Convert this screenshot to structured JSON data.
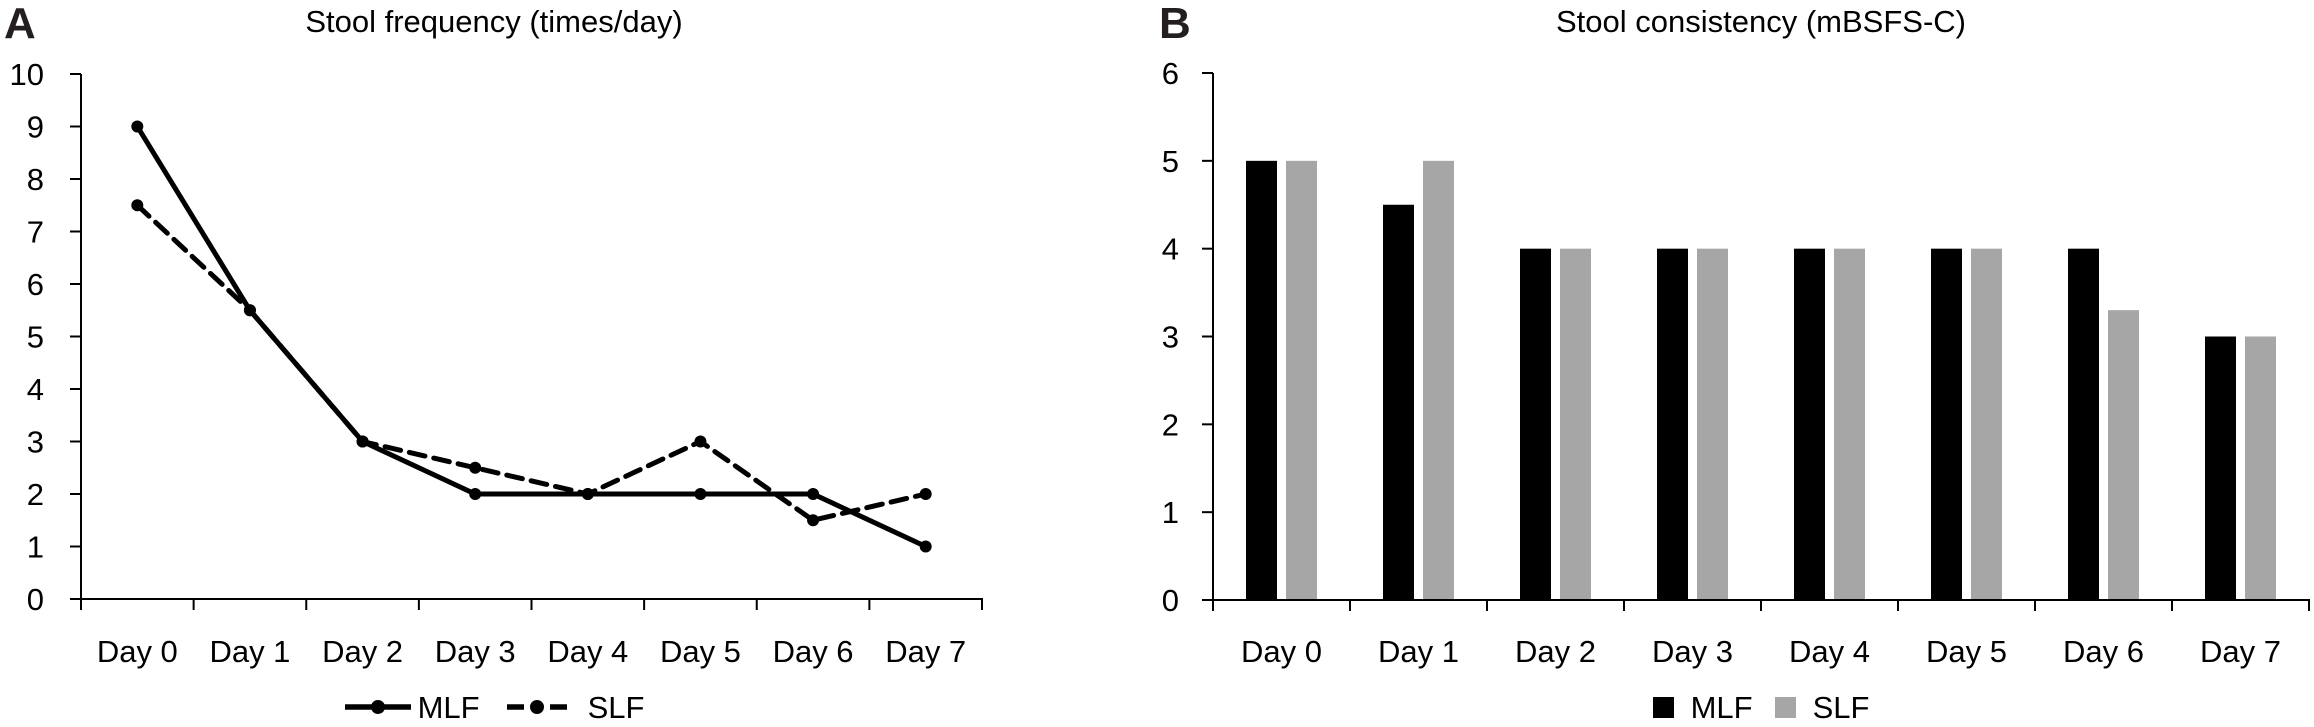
{
  "figure": {
    "panels": [
      {
        "label": "A",
        "title": "Stool frequency (times/day)",
        "legend": [
          {
            "label": "MLF"
          },
          {
            "label": "SLF"
          }
        ]
      },
      {
        "label": "B",
        "title": "Stool consistency (mBSFS-C)",
        "legend": [
          {
            "label": "MLF"
          },
          {
            "label": "SLF"
          }
        ]
      }
    ],
    "colors": {
      "series_black": "#000000",
      "series_gray": "#a6a6a6",
      "axis": "#000000",
      "panel_letter": "#231f20"
    }
  },
  "chart_data": [
    {
      "type": "line",
      "panel": "A",
      "title": "Stool frequency (times/day)",
      "categories": [
        "Day 0",
        "Day 1",
        "Day 2",
        "Day 3",
        "Day 4",
        "Day 5",
        "Day 6",
        "Day 7"
      ],
      "series": [
        {
          "name": "MLF",
          "line_style": "solid",
          "marker": "circle",
          "color": "#000000",
          "values": [
            9,
            5.5,
            3,
            2,
            2,
            2,
            2,
            1
          ]
        },
        {
          "name": "SLF",
          "line_style": "dashed",
          "marker": "circle",
          "color": "#000000",
          "values": [
            7.5,
            5.5,
            3,
            2.5,
            2,
            3,
            1.5,
            2
          ]
        }
      ],
      "ylim": [
        0,
        10
      ],
      "yticks": [
        0,
        1,
        2,
        3,
        4,
        5,
        6,
        7,
        8,
        9,
        10
      ],
      "grid": false,
      "legend_position": "bottom"
    },
    {
      "type": "bar",
      "panel": "B",
      "title": "Stool consistency (mBSFS-C)",
      "categories": [
        "Day 0",
        "Day 1",
        "Day 2",
        "Day 3",
        "Day 4",
        "Day 5",
        "Day 6",
        "Day 7"
      ],
      "series": [
        {
          "name": "MLF",
          "color": "#000000",
          "values": [
            5,
            4.5,
            4,
            4,
            4,
            4,
            4,
            3
          ]
        },
        {
          "name": "SLF",
          "color": "#a6a6a6",
          "values": [
            5,
            5,
            4,
            4,
            4,
            4,
            3.3,
            3
          ]
        }
      ],
      "ylim": [
        0,
        6
      ],
      "yticks": [
        0,
        1,
        2,
        3,
        4,
        5,
        6
      ],
      "grid": false,
      "legend_position": "bottom"
    }
  ]
}
